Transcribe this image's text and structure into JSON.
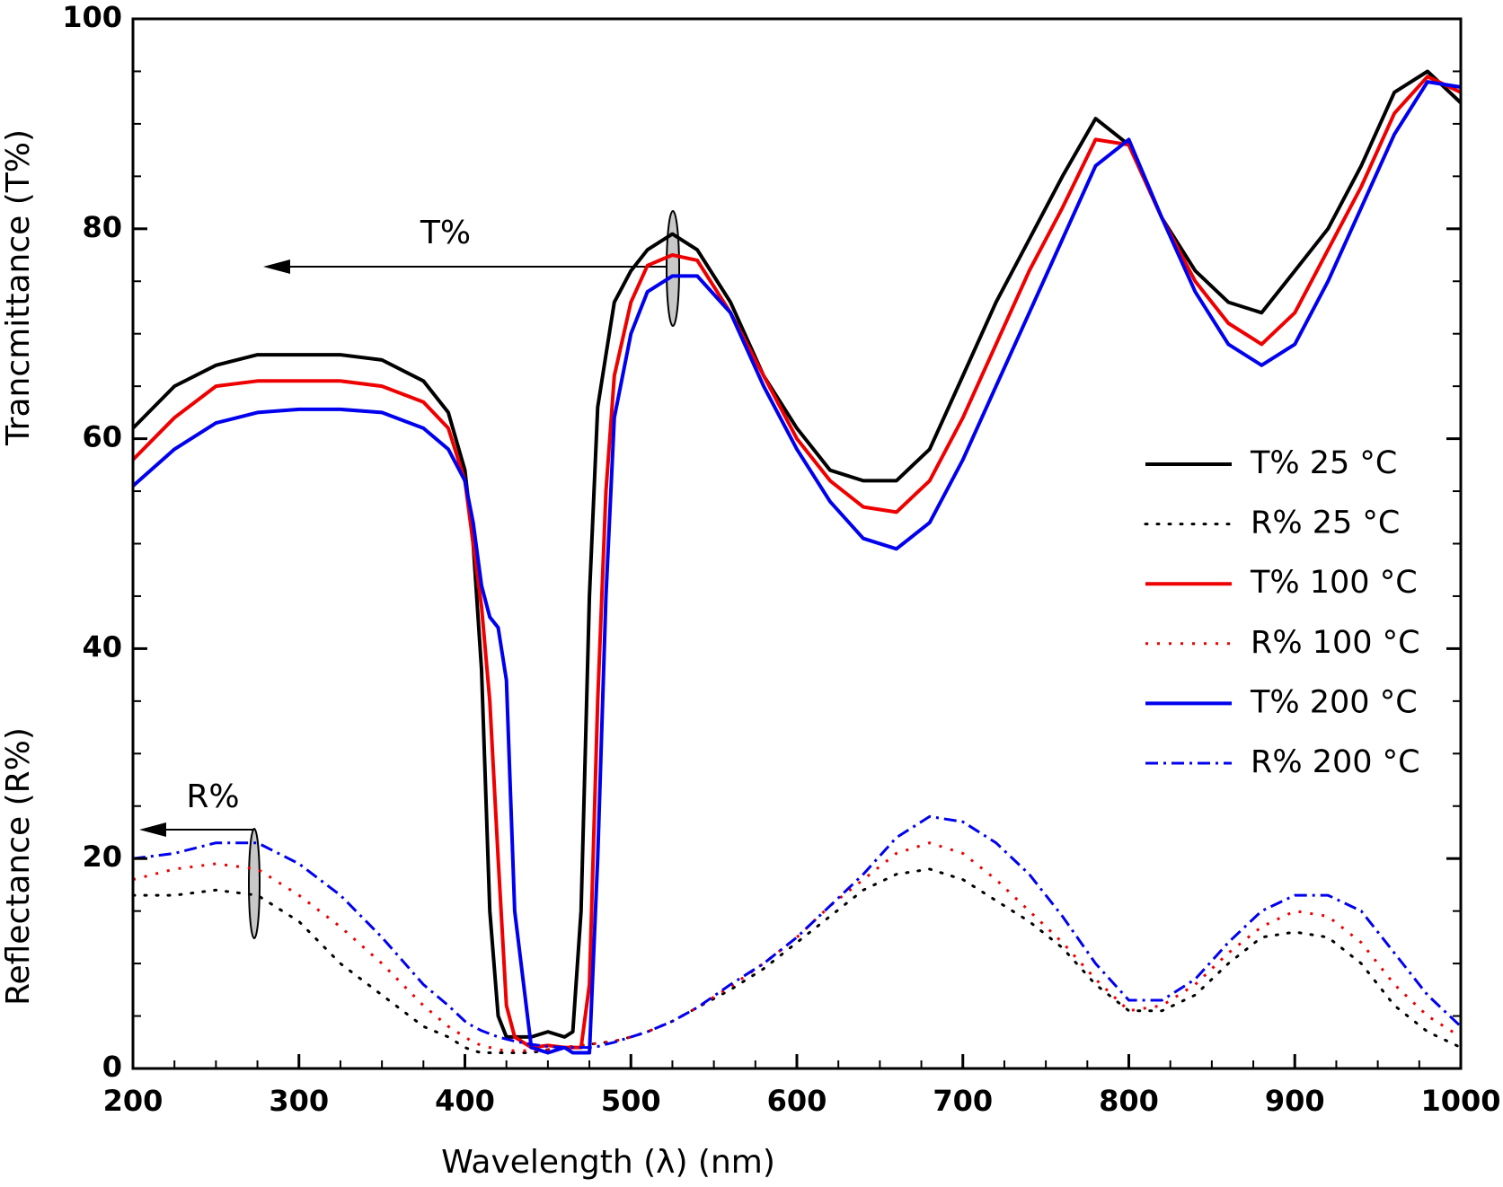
{
  "chart_data": {
    "type": "line",
    "xlabel": "Wavelength  (λ) (nm)",
    "ylabels": [
      "Trancmittance (T%)",
      "Reflectance (R%)"
    ],
    "annotations": [
      "T%",
      "R%"
    ],
    "x": [
      200,
      225,
      250,
      275,
      300,
      325,
      350,
      375,
      390,
      400,
      405,
      410,
      415,
      420,
      425,
      430,
      440,
      450,
      460,
      465,
      470,
      475,
      480,
      485,
      490,
      500,
      510,
      525,
      540,
      560,
      580,
      600,
      620,
      640,
      660,
      680,
      700,
      720,
      740,
      760,
      780,
      800,
      820,
      840,
      860,
      880,
      900,
      920,
      940,
      960,
      980,
      1000
    ],
    "series": [
      {
        "name": "T% 25 °C",
        "color": "#000000",
        "linestyle": "solid",
        "values": [
          61,
          65,
          67,
          68,
          68,
          68,
          67.5,
          65.5,
          62.5,
          57,
          50,
          38,
          15,
          5,
          3,
          3,
          3,
          3.5,
          3,
          3.5,
          15,
          45,
          63,
          68,
          73,
          76,
          78,
          79.5,
          78,
          73,
          66,
          61,
          57,
          56,
          56,
          59,
          66,
          73,
          79,
          85,
          90.5,
          88,
          81,
          76,
          73,
          72,
          76,
          80,
          86,
          93,
          95,
          92
        ]
      },
      {
        "name": "R% 25 °C",
        "color": "#000000",
        "linestyle": "dotted",
        "values": [
          16.5,
          16.5,
          17,
          16.5,
          14,
          10,
          7,
          4,
          3,
          2,
          1.7,
          1.5,
          1.5,
          1.5,
          1.5,
          1.5,
          1.5,
          1.8,
          2,
          2.1,
          2.2,
          2.3,
          2.4,
          2.5,
          2.6,
          3,
          3.5,
          4.5,
          5.8,
          7.5,
          9.5,
          12,
          14.5,
          17,
          18.5,
          19,
          18,
          16,
          14,
          11.5,
          8,
          5.5,
          5.5,
          7,
          10,
          12.5,
          13,
          12.5,
          10,
          6,
          3.5,
          2
        ]
      },
      {
        "name": "T% 100 °C",
        "color": "#ee0000",
        "linestyle": "solid",
        "values": [
          58,
          62,
          65,
          65.5,
          65.5,
          65.5,
          65,
          63.5,
          61,
          56,
          50,
          44,
          35,
          20,
          6,
          3,
          2,
          2.2,
          2,
          2,
          2,
          8,
          35,
          55,
          66,
          73,
          76.5,
          77.5,
          77,
          72,
          66,
          60,
          56,
          53.5,
          53,
          56,
          62,
          69,
          76,
          82,
          88.5,
          88,
          81,
          75,
          71,
          69,
          72,
          78,
          84,
          91,
          94.5,
          93
        ]
      },
      {
        "name": "R% 100 °C",
        "color": "#ee0000",
        "linestyle": "dashed",
        "values": [
          18,
          19,
          19.5,
          19,
          16.5,
          13.5,
          10,
          6,
          4,
          3,
          2.5,
          2.2,
          2,
          1.8,
          1.7,
          1.7,
          1.7,
          1.8,
          2,
          2.1,
          2.2,
          2.3,
          2.4,
          2.5,
          2.6,
          3,
          3.5,
          4.5,
          5.8,
          7.8,
          10,
          12.5,
          15.5,
          18,
          20.5,
          21.5,
          20.5,
          18,
          15,
          12,
          8.5,
          5.5,
          6,
          8,
          11,
          13.5,
          15,
          14.5,
          12,
          8,
          5,
          3
        ]
      },
      {
        "name": "T% 200 °C",
        "color": "#0000ee",
        "linestyle": "solid",
        "values": [
          55.5,
          59,
          61.5,
          62.5,
          62.8,
          62.8,
          62.5,
          61,
          59,
          56,
          52,
          46,
          43,
          42,
          37,
          15,
          2,
          1.5,
          2,
          1.5,
          1.5,
          1.5,
          20,
          45,
          62,
          70,
          74,
          75.5,
          75.5,
          72,
          65,
          59,
          54,
          50.5,
          49.5,
          52,
          58,
          65,
          72,
          79,
          86,
          88.5,
          81,
          74,
          69,
          67,
          69,
          75,
          82,
          89,
          94,
          93.5
        ]
      },
      {
        "name": "R% 200 °C",
        "color": "#0000ee",
        "linestyle": "dashdot",
        "values": [
          20,
          20.5,
          21.5,
          21.5,
          19.5,
          16.5,
          12.5,
          8,
          6,
          4.5,
          4,
          3.6,
          3.3,
          3,
          2.8,
          2.6,
          2.3,
          2.1,
          2,
          2,
          2,
          2,
          2.1,
          2.3,
          2.5,
          3,
          3.5,
          4.5,
          5.8,
          8,
          10,
          12.5,
          15.5,
          18.5,
          22,
          24,
          23.5,
          21.5,
          18.5,
          14.5,
          10,
          6.5,
          6.5,
          8.5,
          12,
          15,
          16.5,
          16.5,
          15,
          11,
          7,
          4
        ]
      }
    ],
    "xlim": [
      200,
      1000
    ],
    "xticks": [
      200,
      300,
      400,
      500,
      600,
      700,
      800,
      900,
      1000
    ],
    "ylim": [
      0,
      100
    ],
    "yticks": [
      0,
      20,
      40,
      60,
      80,
      100
    ],
    "grid": false,
    "legend": "right"
  }
}
